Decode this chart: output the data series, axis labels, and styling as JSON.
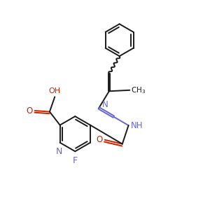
{
  "background_color": "#ffffff",
  "bond_color": "#1a1a1a",
  "nitrogen_color": "#6666cc",
  "oxygen_color": "#cc2200",
  "fluorine_color": "#6666cc",
  "line_width": 1.4,
  "figsize": [
    3.0,
    3.0
  ],
  "dpi": 100,
  "xlim": [
    0,
    10
  ],
  "ylim": [
    0,
    10
  ]
}
